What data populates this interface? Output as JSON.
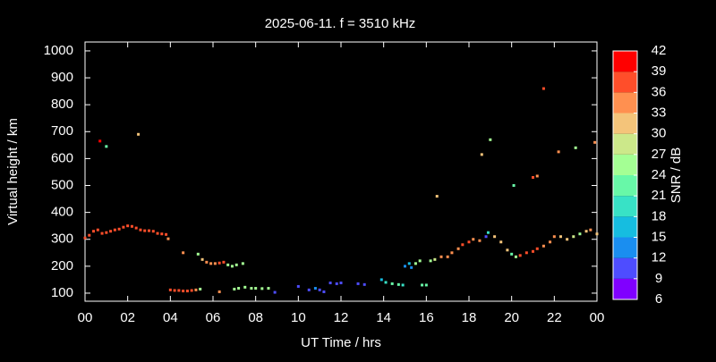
{
  "chart_data": {
    "type": "scatter",
    "title": "2025-06-11. f = 3510 kHz",
    "x_label": "UT Time / hrs",
    "y_label": "Virtual height / km",
    "xlim": [
      0,
      24
    ],
    "xticks": [
      {
        "value": 0,
        "label": "00"
      },
      {
        "value": 2,
        "label": "02"
      },
      {
        "value": 4,
        "label": "04"
      },
      {
        "value": 6,
        "label": "06"
      },
      {
        "value": 8,
        "label": "08"
      },
      10,
      12,
      14,
      16,
      18,
      20,
      22,
      {
        "value": 24,
        "label": "00"
      }
    ],
    "ylim": [
      70,
      1033
    ],
    "yticks": [
      100,
      200,
      300,
      400,
      500,
      600,
      700,
      800,
      900,
      1000
    ],
    "grid": false,
    "colorbar": {
      "label": "SNR / dB",
      "lim": [
        6,
        42
      ],
      "ticks": [
        6,
        9,
        12,
        15,
        18,
        21,
        24,
        27,
        30,
        33,
        36,
        39,
        42
      ],
      "colors": [
        "#8000ff",
        "#4e4dff",
        "#1a8ef0",
        "#16bde0",
        "#38e2c6",
        "#68f8a8",
        "#a4ff94",
        "#cce88a",
        "#f4c47a",
        "#ff9050",
        "#ff4e2a",
        "#ff0000"
      ]
    },
    "x": [
      0.0,
      0.2,
      0.4,
      0.6,
      0.7,
      0.8,
      1.0,
      1.0,
      1.2,
      1.4,
      1.6,
      1.8,
      2.0,
      2.2,
      2.4,
      2.5,
      2.6,
      2.8,
      3.0,
      3.2,
      3.4,
      3.6,
      3.8,
      3.9,
      4.0,
      4.2,
      4.4,
      4.6,
      4.6,
      4.8,
      5.0,
      5.2,
      5.3,
      5.4,
      5.5,
      5.7,
      5.9,
      6.1,
      6.3,
      6.3,
      6.5,
      6.7,
      6.9,
      7.0,
      7.1,
      7.2,
      7.4,
      7.5,
      7.8,
      8.0,
      8.3,
      8.6,
      8.9,
      10.0,
      10.5,
      10.8,
      11.0,
      11.2,
      11.5,
      11.8,
      12.0,
      12.8,
      13.1,
      13.9,
      14.1,
      14.4,
      14.7,
      14.9,
      15.0,
      15.2,
      15.3,
      15.5,
      15.7,
      15.8,
      16.0,
      16.2,
      16.4,
      16.5,
      16.7,
      17.0,
      17.2,
      17.5,
      17.7,
      18.0,
      18.2,
      18.5,
      18.6,
      18.8,
      18.9,
      19.0,
      19.2,
      19.5,
      19.8,
      20.0,
      20.1,
      20.2,
      20.4,
      20.7,
      21.0,
      21.0,
      21.2,
      21.2,
      21.5,
      21.5,
      21.8,
      22.0,
      22.2,
      22.3,
      22.6,
      22.9,
      23.0,
      23.2,
      23.5,
      23.7,
      23.9,
      24.0
    ],
    "y": [
      305,
      315,
      330,
      335,
      665,
      322,
      325,
      645,
      330,
      335,
      338,
      345,
      350,
      348,
      342,
      690,
      335,
      332,
      332,
      330,
      322,
      320,
      318,
      302,
      112,
      110,
      110,
      250,
      108,
      108,
      110,
      112,
      245,
      115,
      225,
      215,
      210,
      210,
      212,
      105,
      215,
      205,
      200,
      115,
      205,
      118,
      210,
      122,
      118,
      118,
      117,
      118,
      103,
      125,
      112,
      118,
      112,
      105,
      138,
      135,
      138,
      135,
      132,
      150,
      140,
      135,
      132,
      130,
      200,
      210,
      195,
      210,
      220,
      130,
      130,
      220,
      225,
      460,
      235,
      235,
      250,
      265,
      280,
      290,
      300,
      295,
      615,
      310,
      325,
      670,
      310,
      290,
      260,
      245,
      500,
      235,
      240,
      250,
      255,
      530,
      535,
      265,
      860,
      275,
      290,
      310,
      625,
      310,
      300,
      310,
      640,
      320,
      330,
      335,
      660,
      320
    ],
    "snr": [
      37,
      37,
      37,
      37,
      40,
      38,
      38,
      22,
      37,
      38,
      38,
      38,
      37,
      37,
      37,
      32,
      36,
      36,
      36,
      36,
      37,
      37,
      36,
      33,
      38,
      38,
      38,
      33,
      38,
      37,
      36,
      33,
      25,
      25,
      31,
      33,
      33,
      33,
      36,
      33,
      37,
      24,
      24,
      25,
      24,
      26,
      24,
      25,
      24,
      24,
      24,
      24,
      10,
      11,
      11,
      13,
      11,
      11,
      10,
      11,
      11,
      11,
      11,
      15,
      18,
      21,
      21,
      20,
      13,
      17,
      13,
      24,
      26,
      21,
      21,
      24,
      28,
      32,
      34,
      34,
      33,
      33,
      38,
      36,
      34,
      33,
      32,
      10,
      20,
      25,
      30,
      31,
      31,
      22,
      22,
      25,
      36,
      37,
      38,
      38,
      33,
      36,
      38,
      33,
      34,
      33,
      33,
      30,
      30,
      28,
      26,
      24,
      30,
      34,
      33,
      30
    ]
  }
}
